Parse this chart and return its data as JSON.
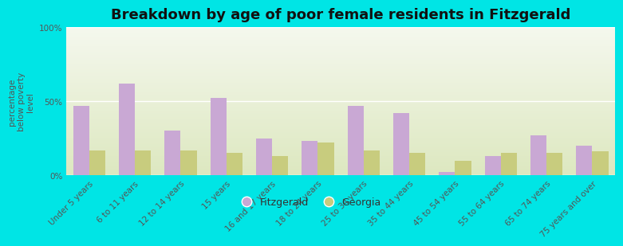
{
  "title": "Breakdown by age of poor female residents in Fitzgerald",
  "ylabel": "percentage\nbelow poverty\nlevel",
  "categories": [
    "Under 5 years",
    "6 to 11 years",
    "12 to 14 years",
    "15 years",
    "16 and 17 years",
    "18 to 24 years",
    "25 to 34 years",
    "35 to 44 years",
    "45 to 54 years",
    "55 to 64 years",
    "65 to 74 years",
    "75 years and over"
  ],
  "fitzgerald": [
    47,
    62,
    30,
    52,
    25,
    23,
    47,
    42,
    2,
    13,
    27,
    20
  ],
  "georgia": [
    17,
    17,
    17,
    15,
    13,
    22,
    17,
    15,
    10,
    15,
    15,
    16
  ],
  "fitzgerald_color": "#c9a8d4",
  "georgia_color": "#c8cc7e",
  "background_color": "#00e5e5",
  "ylim": [
    0,
    100
  ],
  "yticks": [
    0,
    50,
    100
  ],
  "ytick_labels": [
    "0%",
    "50%",
    "100%"
  ],
  "bar_width": 0.35,
  "title_fontsize": 13,
  "label_fontsize": 7.5,
  "tick_fontsize": 7.5,
  "legend_fitzgerald": "Fitzgerald",
  "legend_georgia": "Georgia"
}
